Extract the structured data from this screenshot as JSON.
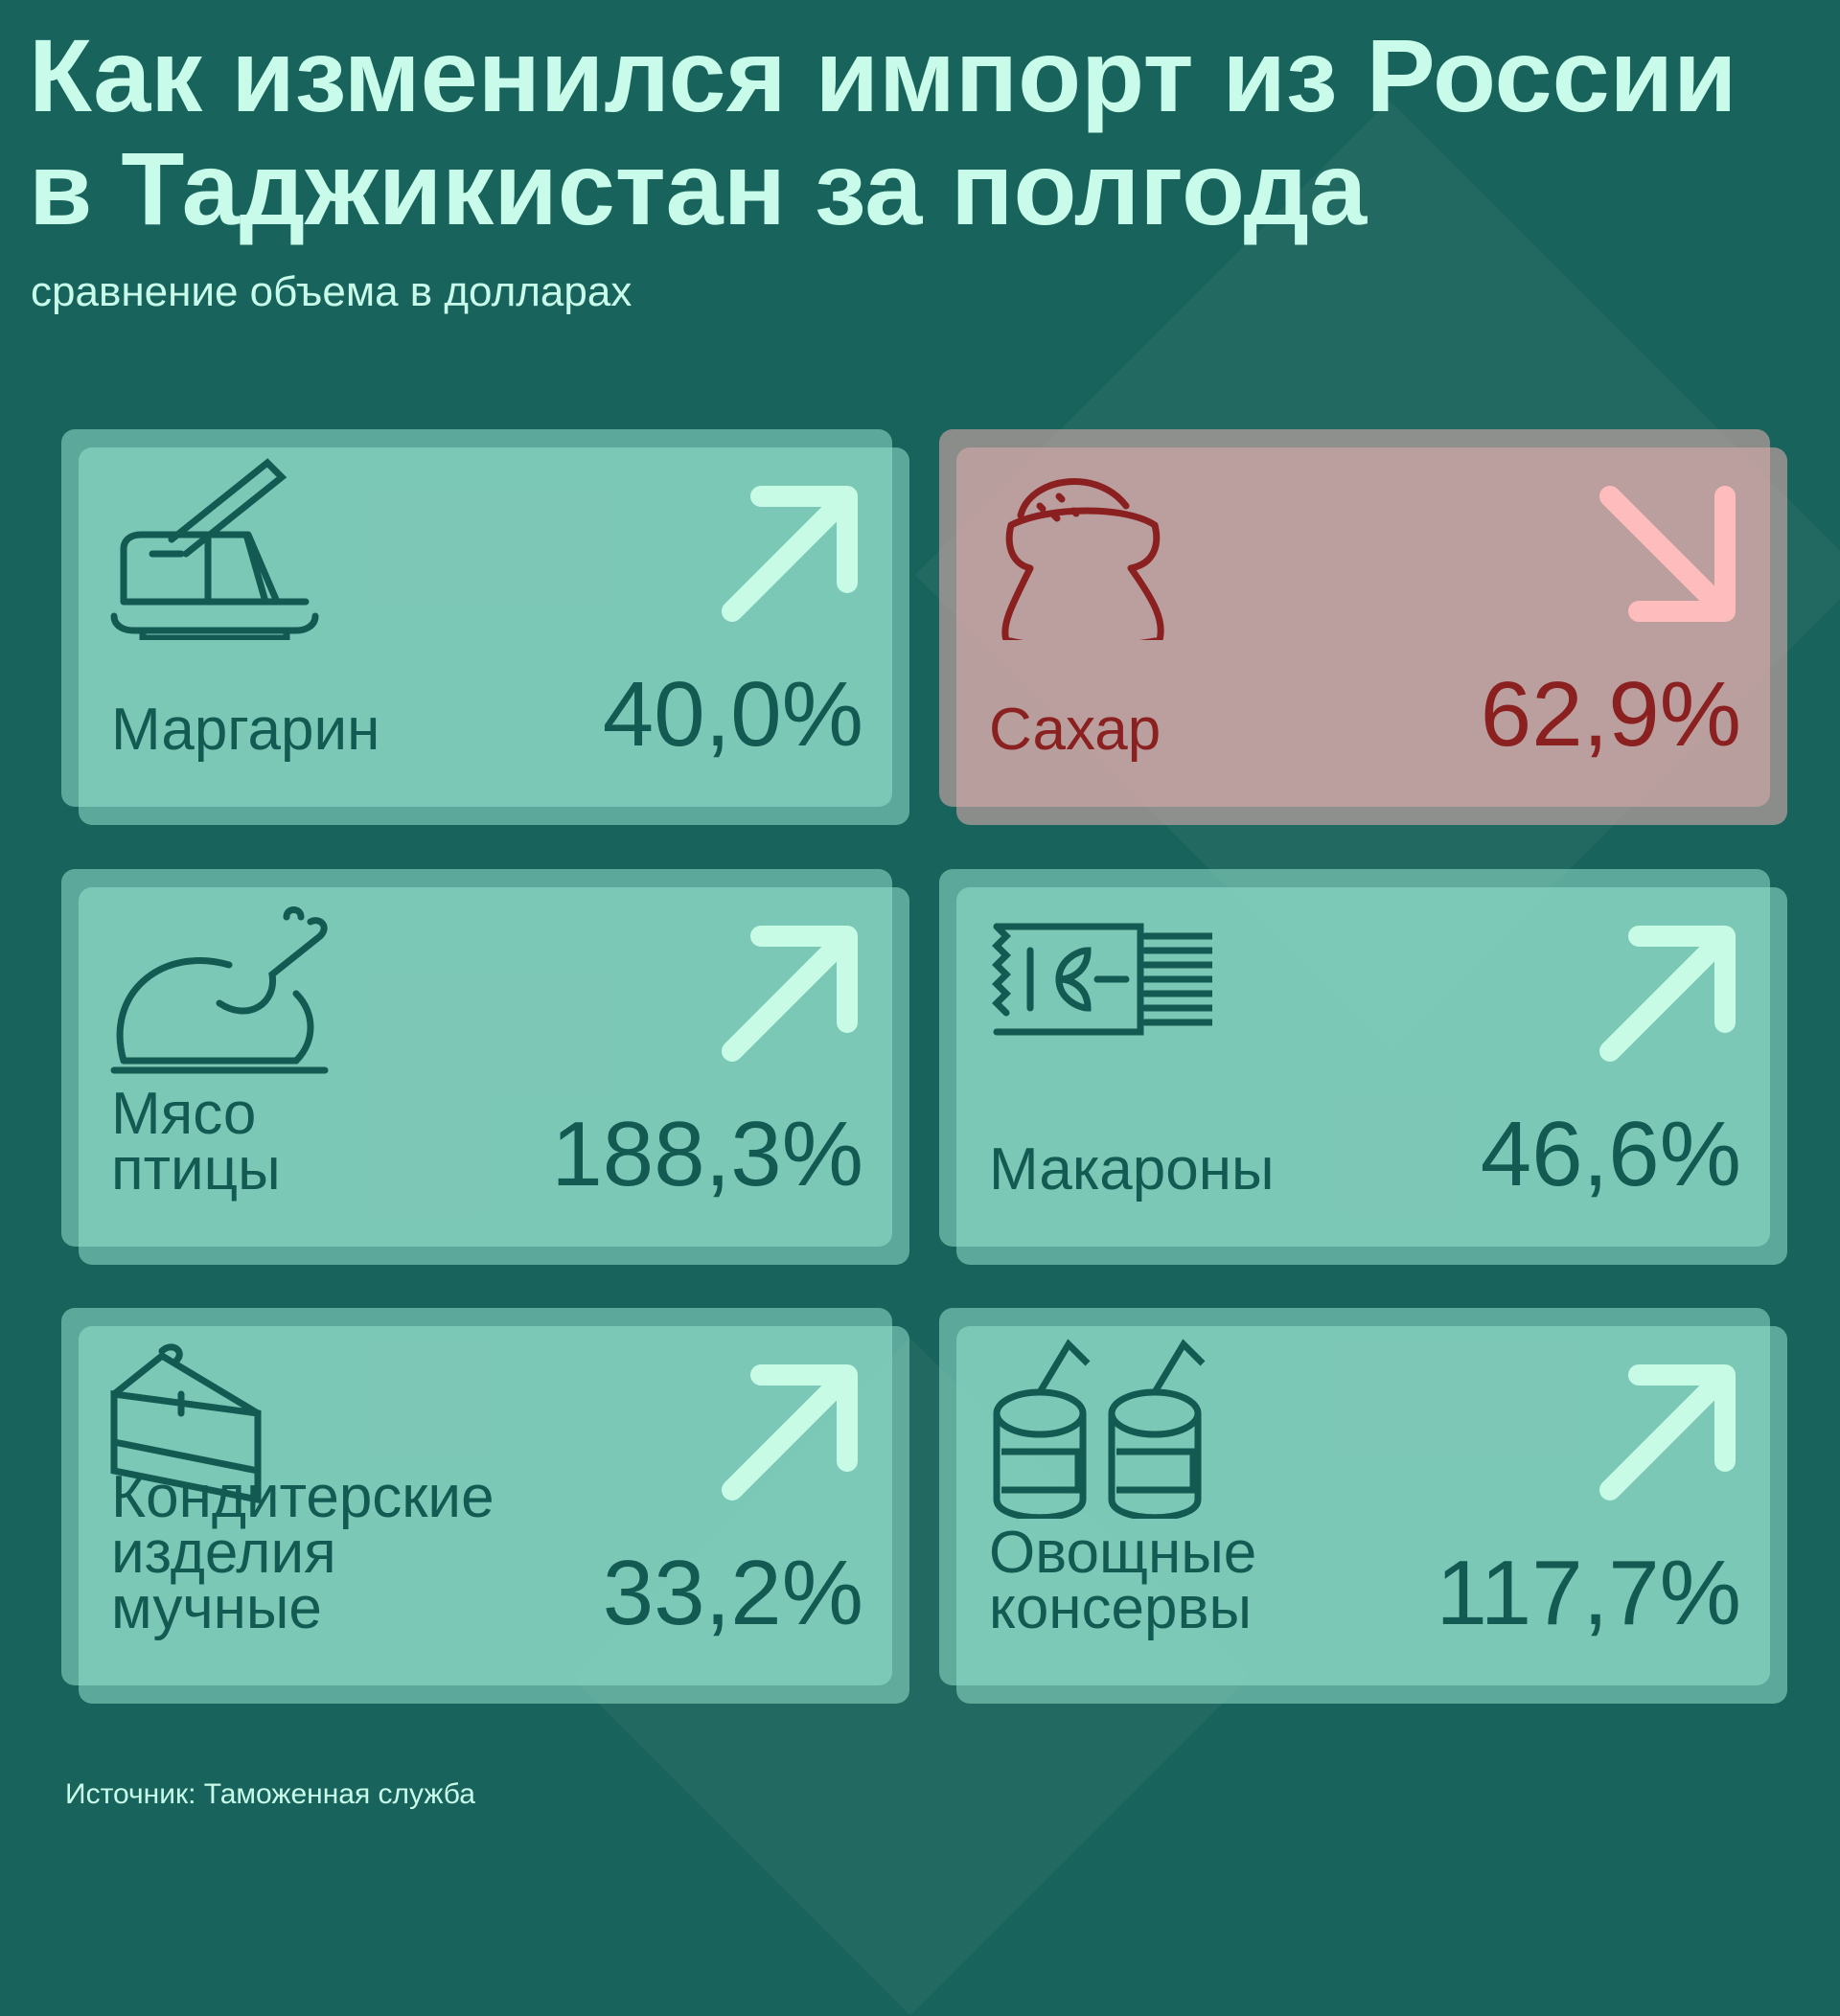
{
  "title_line1": "Как изменился импорт из России",
  "title_line2": "в Таджикистан за полгода",
  "subtitle": "сравнение объема в долларах",
  "source": "Источник: Таможенная служба",
  "colors": {
    "background": "#18635b",
    "up_card": "#85cbb8",
    "down_card": "#b3a3a0",
    "up_text": "#135a52",
    "down_text": "#8b2020",
    "up_arrow": "#c8fbe6",
    "down_arrow": "#ffbcbc"
  },
  "cards": [
    {
      "label": "Маргарин",
      "value": "40,0%",
      "direction": "up",
      "icon": "butter-knife-icon"
    },
    {
      "label": "Сахар",
      "value": "62,9%",
      "direction": "down",
      "icon": "sugar-sack-icon"
    },
    {
      "label": "Мясо\nптицы",
      "value": "188,3%",
      "direction": "up",
      "icon": "roast-chicken-icon"
    },
    {
      "label": "Макароны",
      "value": "46,6%",
      "direction": "up",
      "icon": "pasta-pack-icon"
    },
    {
      "label": "Кондитерские\nизделия\nмучные",
      "value": "33,2%",
      "direction": "up",
      "icon": "cake-slice-icon"
    },
    {
      "label": "Овощные\nконсервы",
      "value": "117,7%",
      "direction": "up",
      "icon": "canned-food-icon"
    }
  ]
}
